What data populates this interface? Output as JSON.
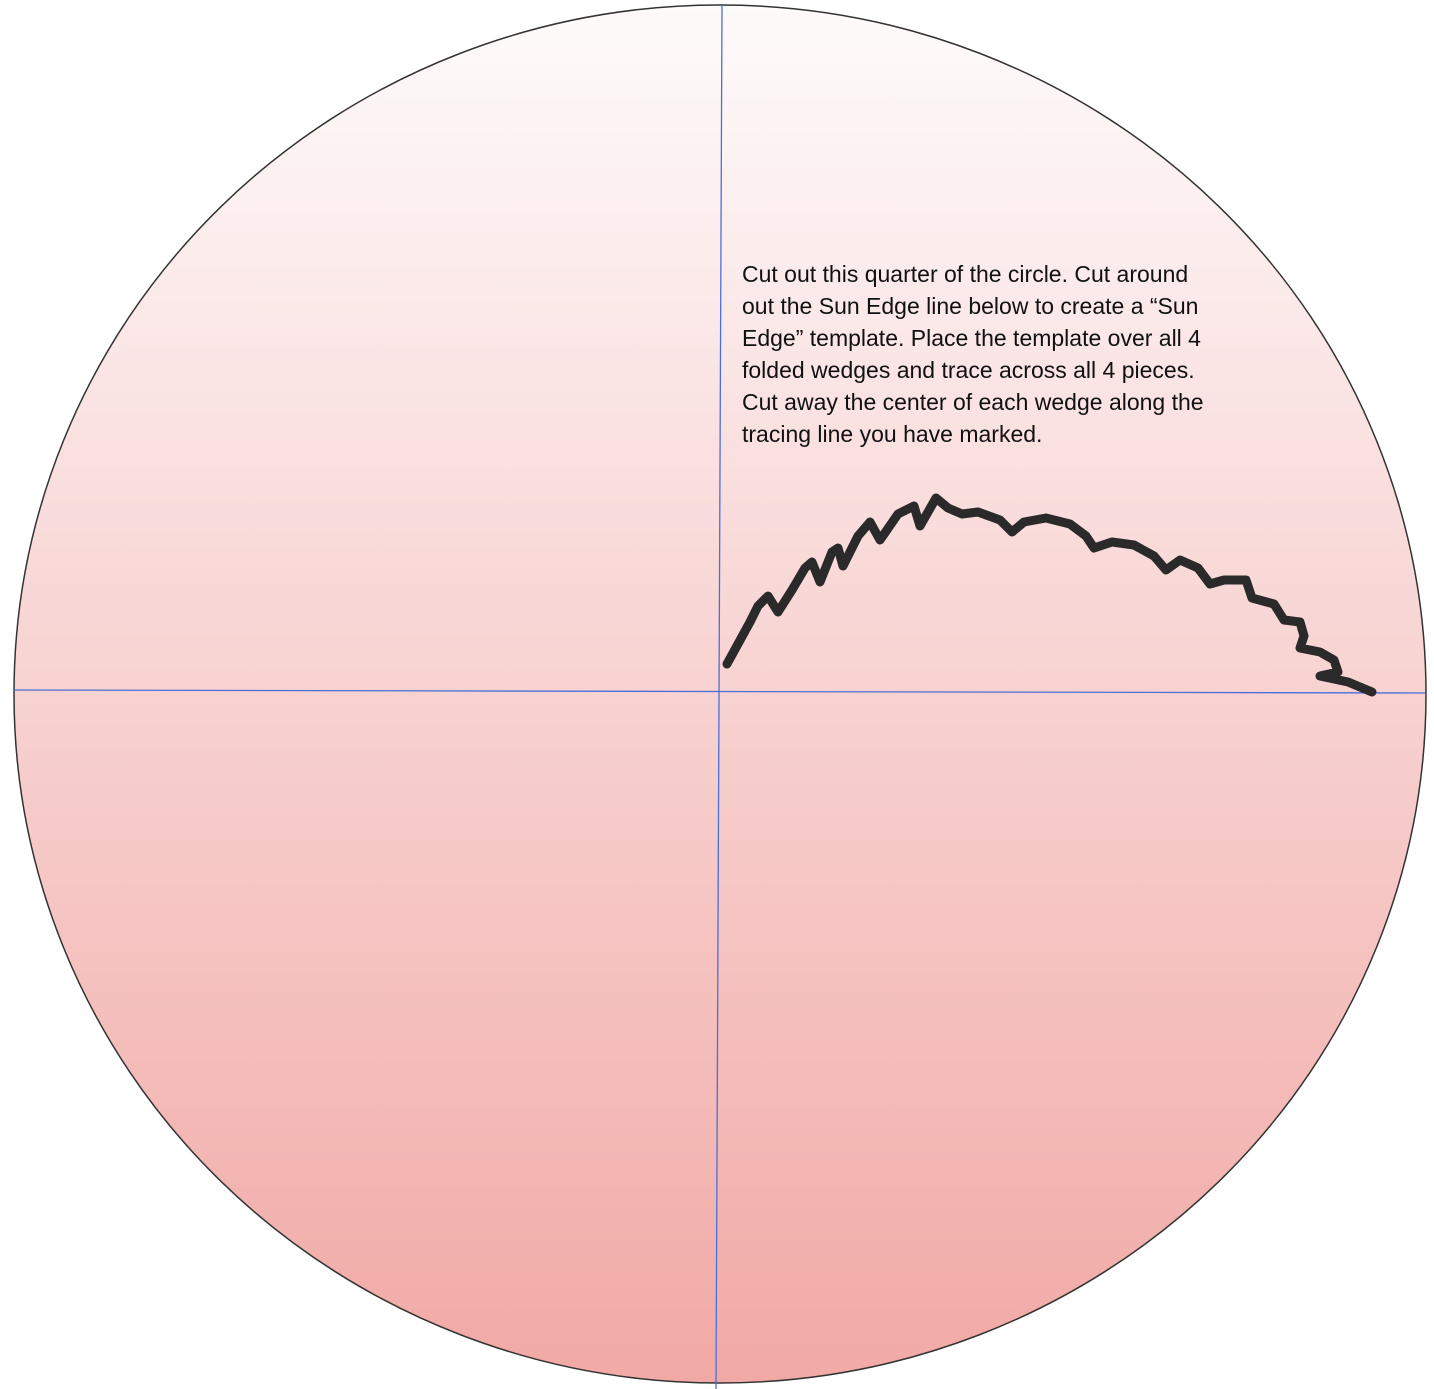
{
  "instructions": {
    "lines": [
      "Cut out this quarter of the circle. Cut around",
      "out the Sun Edge line below to create a “Sun",
      "Edge” template. Place the template over all 4",
      "folded wedges and trace across all 4 pieces.",
      "Cut away the center of each wedge along the",
      "tracing line you have marked."
    ]
  }
}
